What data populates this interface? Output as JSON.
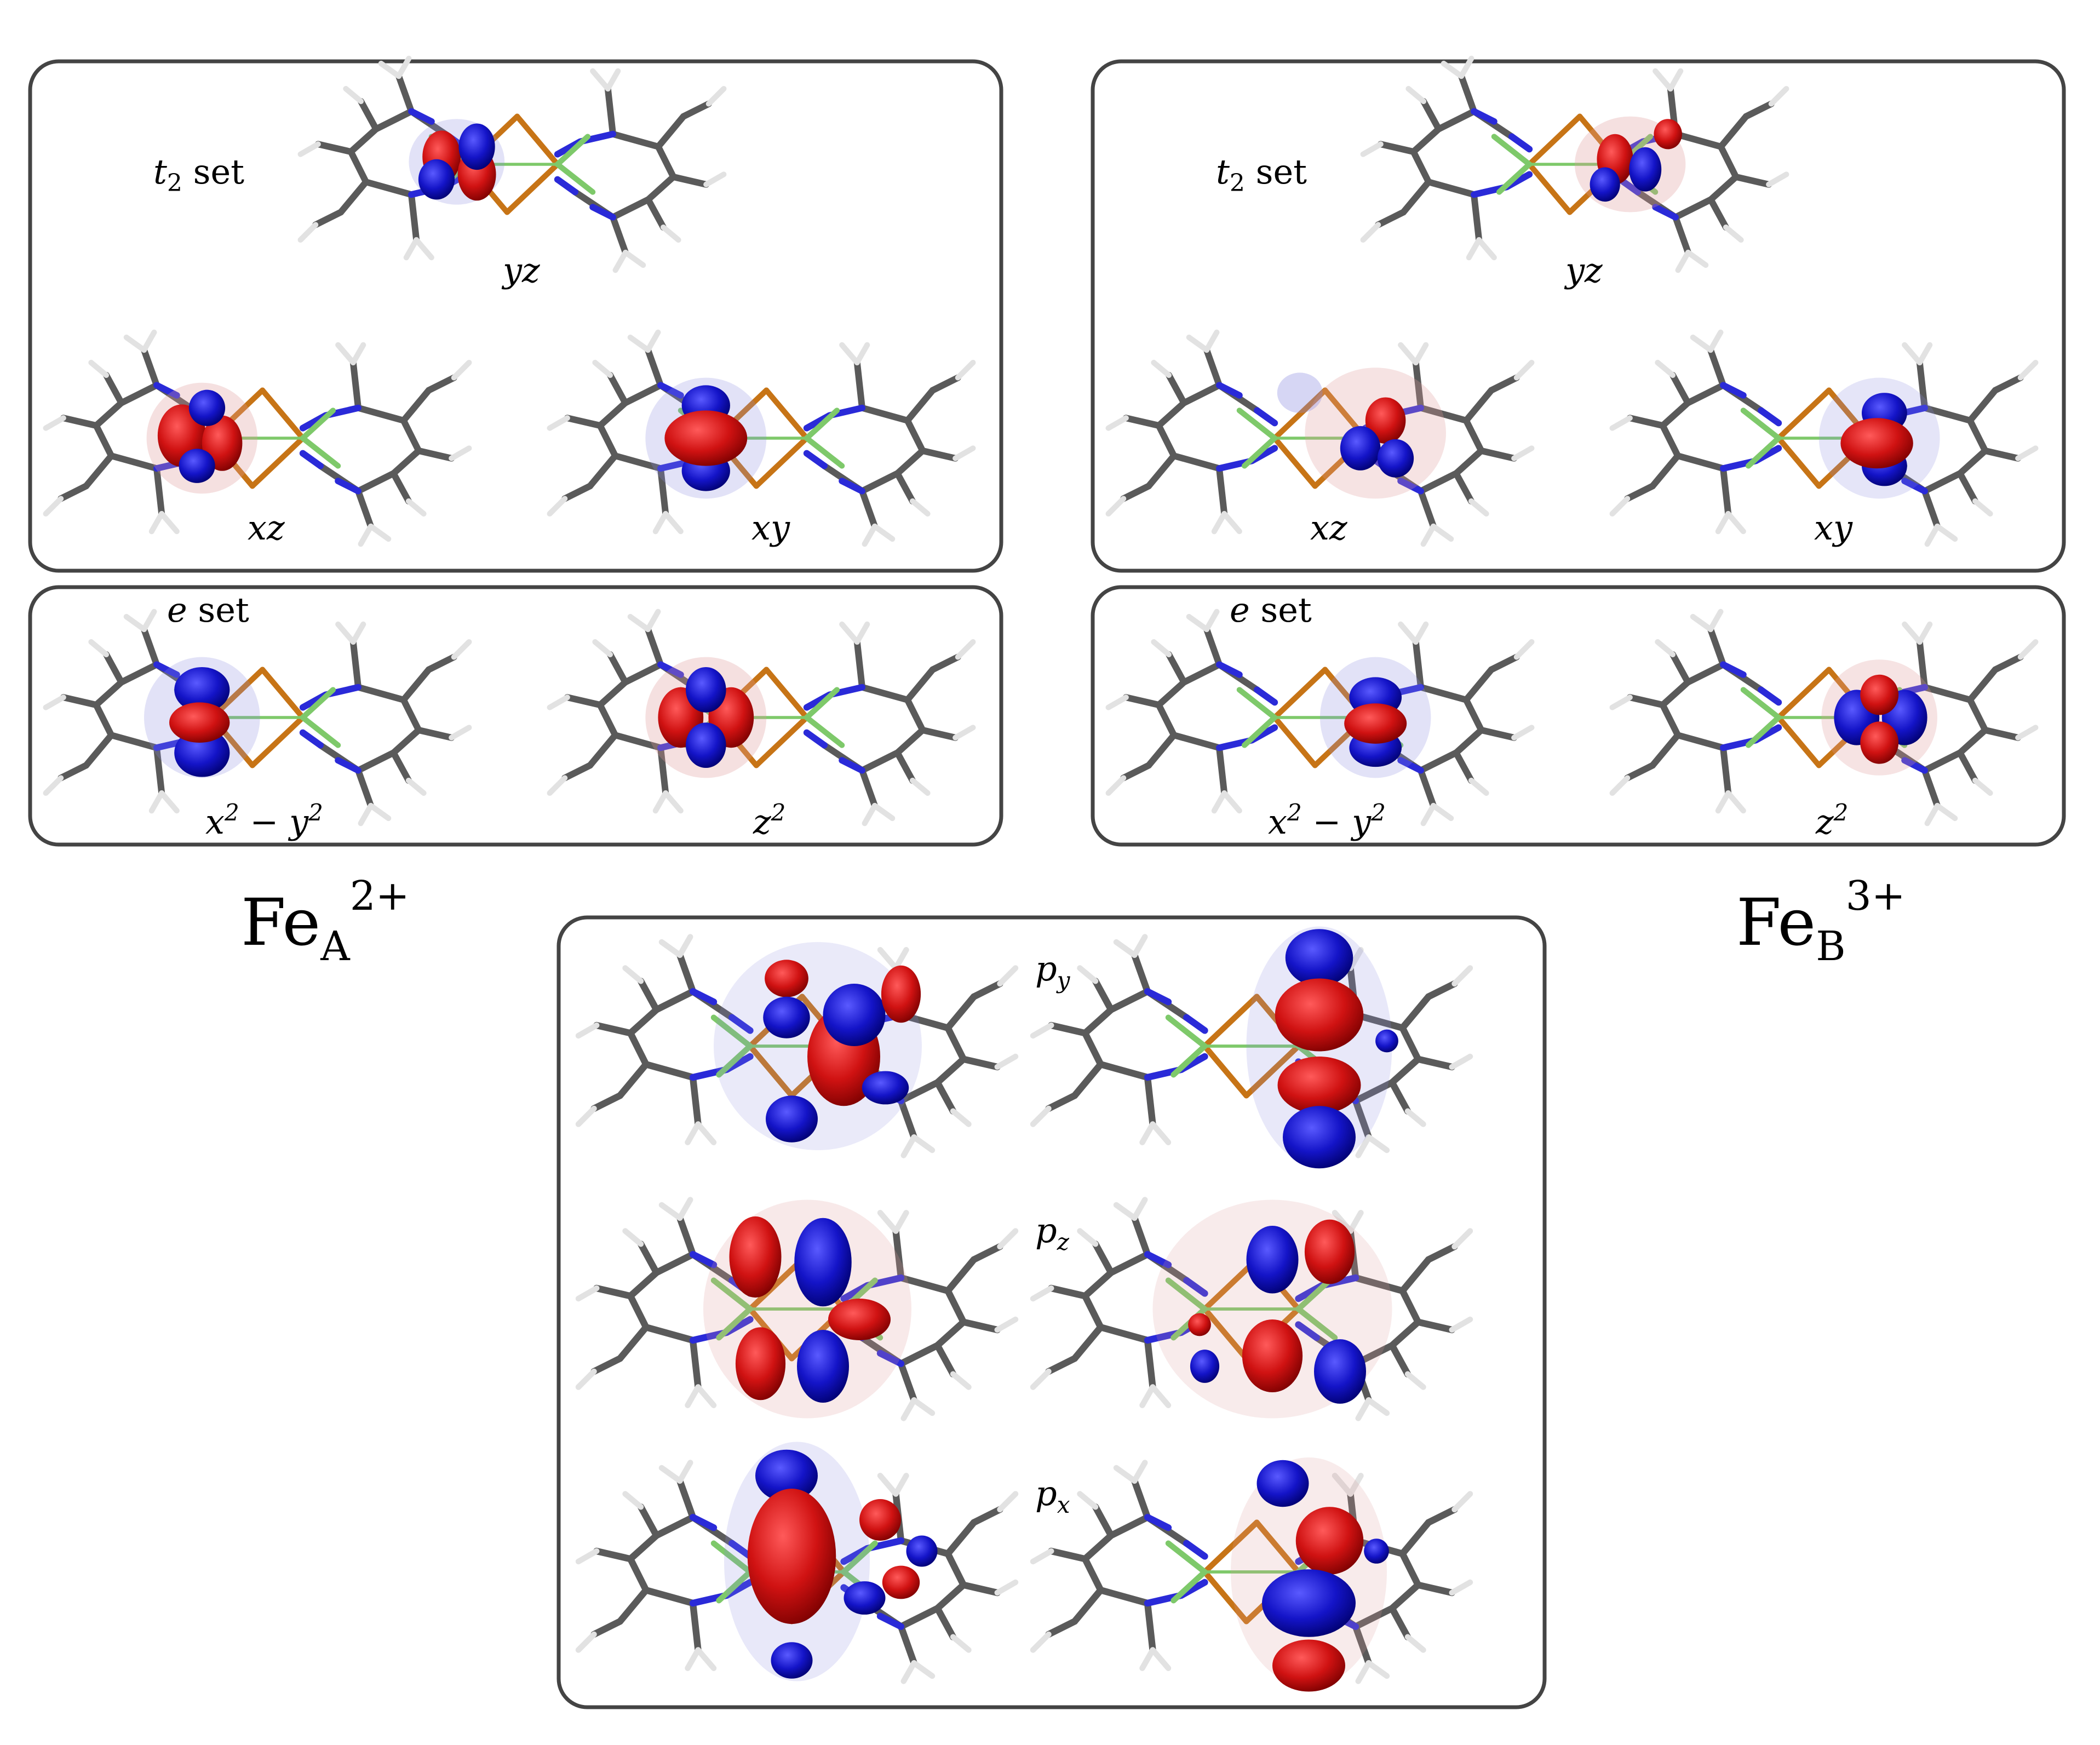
{
  "titles": {
    "fe_a": {
      "main": "Fe",
      "sub": "A",
      "sup": "2+"
    },
    "fe_b": {
      "main": "Fe",
      "sub": "B",
      "sup": "3+"
    }
  },
  "set_labels": {
    "t2_main": "t",
    "t2_sub": "2",
    "t2_rest": " set",
    "e_main": "e",
    "e_rest": " set"
  },
  "orbitals": {
    "yz": "yz",
    "xz": "xz",
    "xy": "xy",
    "x2y2_x": "x",
    "x2y2_sup1": "2",
    "x2y2_minus": " − ",
    "x2y2_y": "y",
    "x2y2_sup2": "2",
    "z2_z": "z",
    "z2_sup": "2"
  },
  "p_labels": {
    "py_main": "p",
    "py_sub": "y",
    "pz_main": "p",
    "pz_sub": "z",
    "px_main": "p",
    "px_sub": "x"
  },
  "colors": {
    "carbon": "#5a5a5a",
    "nitrogen": "#2a2ad8",
    "hydrogen": "#e8e8e8",
    "sulfur": "#c77416",
    "iron": "#7ec96a",
    "lobe_positive": "#d01212",
    "lobe_negative": "#1414c8",
    "panel_border": "#444444"
  }
}
